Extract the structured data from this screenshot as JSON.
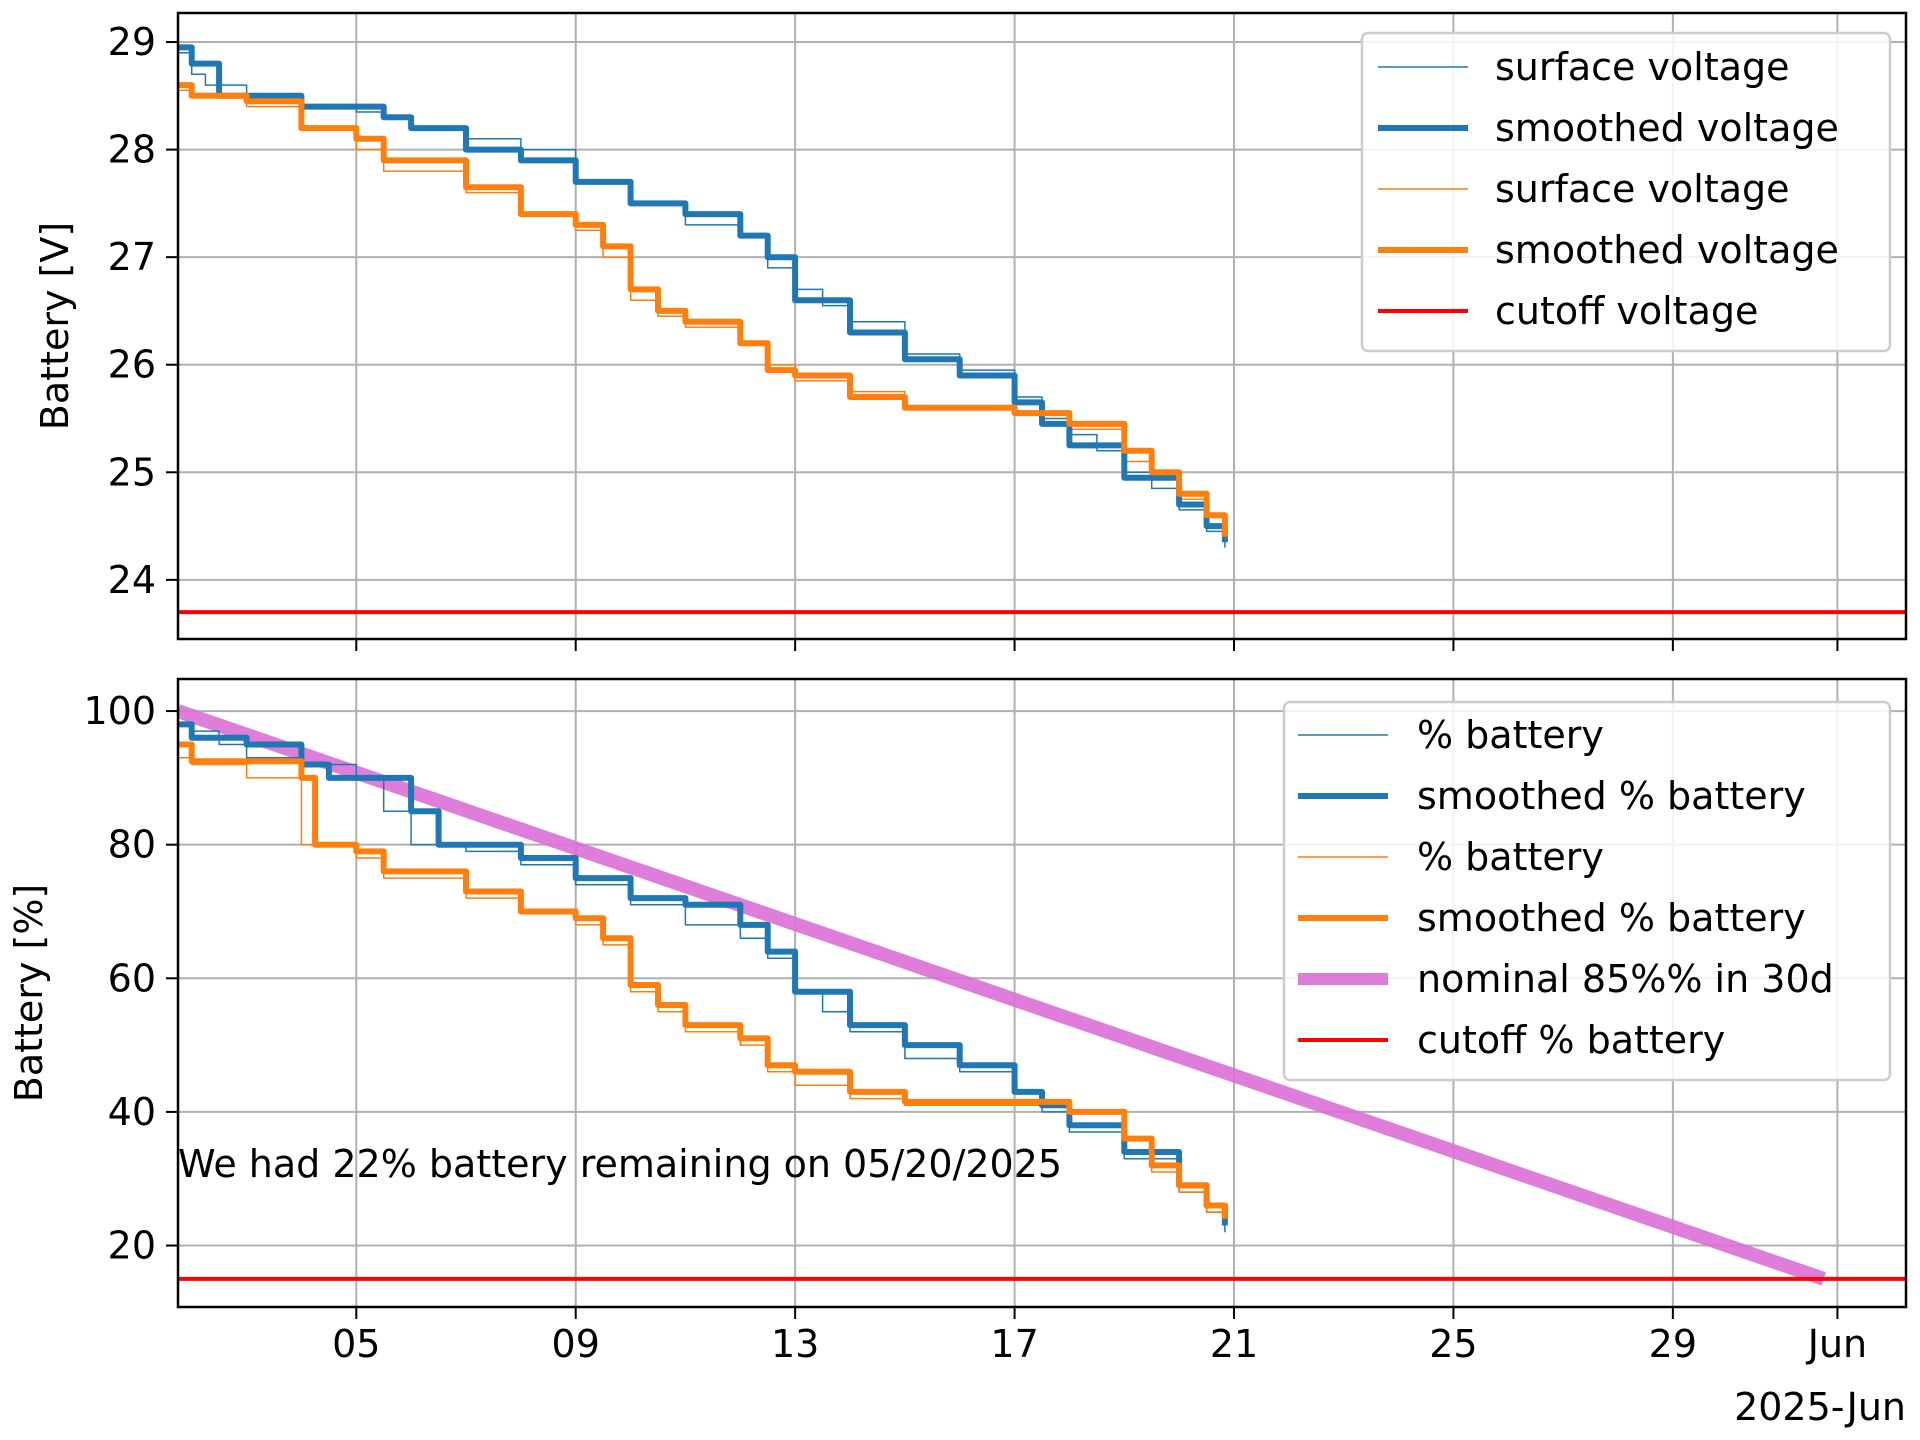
{
  "chart_data": [
    {
      "type": "line",
      "ylabel": "Battery [V]",
      "xlabel": "",
      "ylim": [
        23.45,
        29.27
      ],
      "xlim": [
        "2025-05-01T18:00",
        "2025-06-02T06:00"
      ],
      "grid": true,
      "legend_position": "top-right",
      "yticks": [
        24,
        25,
        26,
        27,
        28,
        29
      ],
      "colors": {
        "blue": "#1f77b4",
        "orange": "#ff7f0e",
        "red": "#ff0000"
      },
      "series": [
        {
          "name": "surface voltage",
          "color": "#1f77b4",
          "style": "thin",
          "x": [
            "05-01T18:00",
            "05-02T00:00",
            "05-02T06:00",
            "05-03T00:00",
            "05-04T00:00",
            "05-05T00:00",
            "05-05T12:00",
            "05-06T00:00",
            "05-07T00:00",
            "05-08T00:00",
            "05-09T00:00",
            "05-10T00:00",
            "05-11T00:00",
            "05-12T00:00",
            "05-12T12:00",
            "05-13T00:00",
            "05-13T12:00",
            "05-14T00:00",
            "05-15T00:00",
            "05-16T00:00",
            "05-17T00:00",
            "05-17T12:00",
            "05-18T00:00",
            "05-18T12:00",
            "05-19T00:00",
            "05-19T12:00",
            "05-20T00:00",
            "05-20T12:00",
            "05-20T20:00"
          ],
          "y": [
            28.9,
            28.7,
            28.6,
            28.5,
            28.4,
            28.35,
            28.3,
            28.2,
            28.1,
            28.0,
            27.7,
            27.5,
            27.3,
            27.2,
            26.9,
            26.7,
            26.55,
            26.4,
            26.1,
            25.95,
            25.7,
            25.5,
            25.35,
            25.2,
            25.0,
            24.85,
            24.65,
            24.45,
            24.3
          ]
        },
        {
          "name": "smoothed voltage",
          "color": "#1f77b4",
          "style": "thick",
          "x": [
            "05-01T18:00",
            "05-02T00:00",
            "05-02T12:00",
            "05-04T00:00",
            "05-05T12:00",
            "05-06T00:00",
            "05-07T00:00",
            "05-08T00:00",
            "05-09T00:00",
            "05-10T00:00",
            "05-11T00:00",
            "05-12T00:00",
            "05-12T12:00",
            "05-13T00:00",
            "05-14T00:00",
            "05-15T00:00",
            "05-16T00:00",
            "05-17T00:00",
            "05-17T12:00",
            "05-18T00:00",
            "05-19T00:00",
            "05-20T00:00",
            "05-20T12:00",
            "05-20T20:00"
          ],
          "y": [
            28.95,
            28.8,
            28.5,
            28.4,
            28.3,
            28.2,
            28.0,
            27.9,
            27.7,
            27.5,
            27.4,
            27.2,
            27.0,
            26.6,
            26.3,
            26.05,
            25.9,
            25.65,
            25.45,
            25.25,
            24.95,
            24.7,
            24.5,
            24.35
          ]
        },
        {
          "name": "surface voltage",
          "color": "#ff7f0e",
          "style": "thin",
          "x": [
            "05-01T18:00",
            "05-02T00:00",
            "05-03T00:00",
            "05-04T00:00",
            "05-05T00:00",
            "05-05T12:00",
            "05-06T00:00",
            "05-07T00:00",
            "05-08T00:00",
            "05-09T00:00",
            "05-09T12:00",
            "05-10T00:00",
            "05-10T12:00",
            "05-11T00:00",
            "05-12T00:00",
            "05-12T12:00",
            "05-13T00:00",
            "05-14T00:00",
            "05-15T00:00",
            "05-16T00:00",
            "05-17T00:00",
            "05-18T00:00",
            "05-19T00:00",
            "05-19T12:00",
            "05-20T00:00",
            "05-20T12:00",
            "05-20T20:00"
          ],
          "y": [
            28.55,
            28.5,
            28.4,
            28.2,
            28.0,
            27.8,
            27.8,
            27.6,
            27.4,
            27.25,
            27.0,
            26.6,
            26.45,
            26.35,
            26.2,
            26.0,
            25.85,
            25.75,
            25.6,
            25.6,
            25.55,
            25.4,
            25.1,
            24.95,
            24.75,
            24.5,
            24.35
          ]
        },
        {
          "name": "smoothed voltage",
          "color": "#ff7f0e",
          "style": "thick",
          "x": [
            "05-01T18:00",
            "05-02T00:00",
            "05-03T00:00",
            "05-04T00:00",
            "05-05T00:00",
            "05-05T12:00",
            "05-06T00:00",
            "05-07T00:00",
            "05-08T00:00",
            "05-09T00:00",
            "05-09T12:00",
            "05-10T00:00",
            "05-10T12:00",
            "05-11T00:00",
            "05-12T00:00",
            "05-12T12:00",
            "05-13T00:00",
            "05-14T00:00",
            "05-15T00:00",
            "05-16T00:00",
            "05-17T00:00",
            "05-18T00:00",
            "05-19T00:00",
            "05-19T12:00",
            "05-20T00:00",
            "05-20T12:00",
            "05-20T20:00"
          ],
          "y": [
            28.6,
            28.5,
            28.45,
            28.2,
            28.1,
            27.9,
            27.9,
            27.65,
            27.4,
            27.3,
            27.1,
            26.7,
            26.5,
            26.4,
            26.2,
            25.95,
            25.9,
            25.7,
            25.6,
            25.6,
            25.55,
            25.45,
            25.2,
            25.0,
            24.8,
            24.6,
            24.4
          ]
        },
        {
          "name": "cutoff voltage",
          "color": "#ff0000",
          "style": "medium",
          "x": [
            "05-01T18:00",
            "06-02T06:00"
          ],
          "y": [
            23.7,
            23.7
          ]
        }
      ],
      "legend": [
        "surface voltage",
        "smoothed voltage",
        "surface voltage",
        "smoothed voltage",
        "cutoff voltage"
      ]
    },
    {
      "type": "line",
      "ylabel": "Battery [%]",
      "xlabel": "",
      "ylim": [
        10.8,
        104.8
      ],
      "xlim": [
        "2025-05-01T18:00",
        "2025-06-02T06:00"
      ],
      "grid": true,
      "legend_position": "top-right",
      "yticks": [
        20,
        40,
        60,
        80,
        100
      ],
      "xticks": [
        {
          "date": "05-05T00:00",
          "label": "05"
        },
        {
          "date": "05-09T00:00",
          "label": "09"
        },
        {
          "date": "05-13T00:00",
          "label": "13"
        },
        {
          "date": "05-17T00:00",
          "label": "17"
        },
        {
          "date": "05-21T00:00",
          "label": "21"
        },
        {
          "date": "05-25T00:00",
          "label": "25"
        },
        {
          "date": "05-29T00:00",
          "label": "29"
        },
        {
          "date": "06-01T00:00",
          "label": "Jun"
        }
      ],
      "x_offset_label": "2025-Jun",
      "annotation": "We had 22% battery remaining on 05/20/2025",
      "colors": {
        "blue": "#1f77b4",
        "orange": "#ff7f0e",
        "red": "#ff0000",
        "violet": "#da70d6"
      },
      "series": [
        {
          "name": "% battery",
          "color": "#1f77b4",
          "style": "thin",
          "x": [
            "05-01T18:00",
            "05-02T00:00",
            "05-02T12:00",
            "05-03T00:00",
            "05-04T00:00",
            "05-05T00:00",
            "05-05T12:00",
            "05-06T00:00",
            "05-07T00:00",
            "05-08T00:00",
            "05-09T00:00",
            "05-10T00:00",
            "05-11T00:00",
            "05-12T00:00",
            "05-12T12:00",
            "05-13T00:00",
            "05-13T12:00",
            "05-14T00:00",
            "05-15T00:00",
            "05-16T00:00",
            "05-17T00:00",
            "05-17T12:00",
            "05-18T00:00",
            "05-19T00:00",
            "05-20T00:00",
            "05-20T12:00",
            "05-20T20:00"
          ],
          "y": [
            98,
            97,
            95,
            93,
            92,
            90,
            85,
            80,
            79,
            77,
            74,
            71,
            68,
            66,
            63,
            58,
            55,
            52,
            48,
            46,
            43,
            40,
            37,
            33,
            28,
            25,
            22
          ]
        },
        {
          "name": "smoothed % battery",
          "color": "#1f77b4",
          "style": "thick",
          "x": [
            "05-01T18:00",
            "05-02T00:00",
            "05-03T00:00",
            "05-04T00:00",
            "05-04T12:00",
            "05-05T12:00",
            "05-06T00:00",
            "05-06T12:00",
            "05-07T00:00",
            "05-08T00:00",
            "05-09T00:00",
            "05-10T00:00",
            "05-11T00:00",
            "05-12T00:00",
            "05-12T12:00",
            "05-13T00:00",
            "05-14T00:00",
            "05-15T00:00",
            "05-16T00:00",
            "05-17T00:00",
            "05-17T12:00",
            "05-18T00:00",
            "05-19T00:00",
            "05-20T00:00",
            "05-20T12:00",
            "05-20T20:00"
          ],
          "y": [
            98,
            96,
            95,
            92,
            90,
            90,
            85,
            80,
            80,
            78,
            75,
            72,
            71,
            68,
            64,
            58,
            53,
            50,
            47,
            43,
            41,
            38,
            34,
            29,
            26,
            23
          ]
        },
        {
          "name": "% battery",
          "color": "#ff7f0e",
          "style": "thin",
          "x": [
            "05-01T18:00",
            "05-02T00:00",
            "05-03T00:00",
            "05-04T00:00",
            "05-05T00:00",
            "05-05T12:00",
            "05-06T00:00",
            "05-07T00:00",
            "05-08T00:00",
            "05-09T00:00",
            "05-09T12:00",
            "05-10T00:00",
            "05-10T12:00",
            "05-11T00:00",
            "05-12T00:00",
            "05-12T12:00",
            "05-13T00:00",
            "05-14T00:00",
            "05-15T00:00",
            "05-16T00:00",
            "05-17T00:00",
            "05-18T00:00",
            "05-19T00:00",
            "05-19T12:00",
            "05-20T00:00",
            "05-20T12:00",
            "05-20T20:00"
          ],
          "y": [
            93,
            92,
            90,
            80,
            78,
            75,
            75,
            72,
            70,
            68,
            65,
            58,
            55,
            52,
            50,
            46,
            44,
            42,
            41,
            41,
            41,
            38,
            34,
            31,
            28,
            25,
            23
          ]
        },
        {
          "name": "smoothed % battery",
          "color": "#ff7f0e",
          "style": "thick",
          "x": [
            "05-01T18:00",
            "05-02T00:00",
            "05-03T00:00",
            "05-04T00:00",
            "05-04T06:00",
            "05-05T00:00",
            "05-05T12:00",
            "05-06T00:00",
            "05-07T00:00",
            "05-08T00:00",
            "05-09T00:00",
            "05-09T12:00",
            "05-10T00:00",
            "05-10T12:00",
            "05-11T00:00",
            "05-12T00:00",
            "05-12T12:00",
            "05-13T00:00",
            "05-14T00:00",
            "05-15T00:00",
            "05-16T00:00",
            "05-17T00:00",
            "05-18T00:00",
            "05-19T00:00",
            "05-19T12:00",
            "05-20T00:00",
            "05-20T12:00",
            "05-20T20:00"
          ],
          "y": [
            95,
            92.5,
            92.5,
            90,
            80,
            79,
            76,
            76,
            73,
            70,
            69,
            66,
            59,
            56,
            53,
            51,
            47,
            46,
            43,
            41.5,
            41.5,
            41.5,
            40,
            36,
            32,
            29,
            26,
            24
          ]
        },
        {
          "name": "nominal 85%% in 30d",
          "color": "#da70d6",
          "style": "wide",
          "x": [
            "05-01T18:00",
            "05-31T18:00"
          ],
          "y": [
            100,
            15
          ]
        },
        {
          "name": "cutoff % battery",
          "color": "#ff0000",
          "style": "medium",
          "x": [
            "05-01T18:00",
            "06-02T06:00"
          ],
          "y": [
            15,
            15
          ]
        }
      ],
      "legend": [
        "% battery",
        "smoothed % battery",
        "% battery",
        "smoothed % battery",
        "nominal 85%% in 30d",
        "cutoff % battery"
      ]
    }
  ]
}
